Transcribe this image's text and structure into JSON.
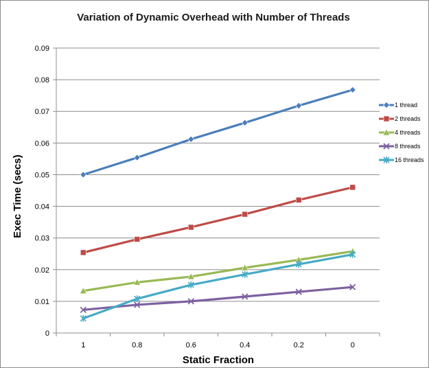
{
  "chart_data": {
    "type": "line",
    "title": "Variation of Dynamic Overhead with Number of Threads",
    "xlabel": "Static Fraction",
    "ylabel": "Exec Time (secs)",
    "categories": [
      "1",
      "0.8",
      "0.6",
      "0.4",
      "0.2",
      "0"
    ],
    "ylim": [
      0,
      0.09
    ],
    "yticks": [
      "0",
      "0.01",
      "0.02",
      "0.03",
      "0.04",
      "0.05",
      "0.06",
      "0.07",
      "0.08",
      "0.09"
    ],
    "grid": true,
    "legend_position": "right",
    "series": [
      {
        "name": "1 thread",
        "color": "#4a7ebb",
        "marker": "diamond",
        "values": [
          0.05,
          0.0554,
          0.0612,
          0.0664,
          0.0718,
          0.0768
        ]
      },
      {
        "name": "2 threads",
        "color": "#be4b48",
        "marker": "square",
        "values": [
          0.0254,
          0.0296,
          0.0334,
          0.0375,
          0.042,
          0.046
        ]
      },
      {
        "name": "4 threads",
        "color": "#98b954",
        "marker": "triangle",
        "values": [
          0.0133,
          0.016,
          0.0178,
          0.0206,
          0.0231,
          0.0258
        ]
      },
      {
        "name": "8 threads",
        "color": "#7d60a0",
        "marker": "x",
        "values": [
          0.0073,
          0.0089,
          0.01,
          0.0115,
          0.013,
          0.0145
        ]
      },
      {
        "name": "16 threads",
        "color": "#46aac5",
        "marker": "star",
        "values": [
          0.0046,
          0.0108,
          0.0152,
          0.0185,
          0.0217,
          0.0248
        ]
      }
    ]
  }
}
